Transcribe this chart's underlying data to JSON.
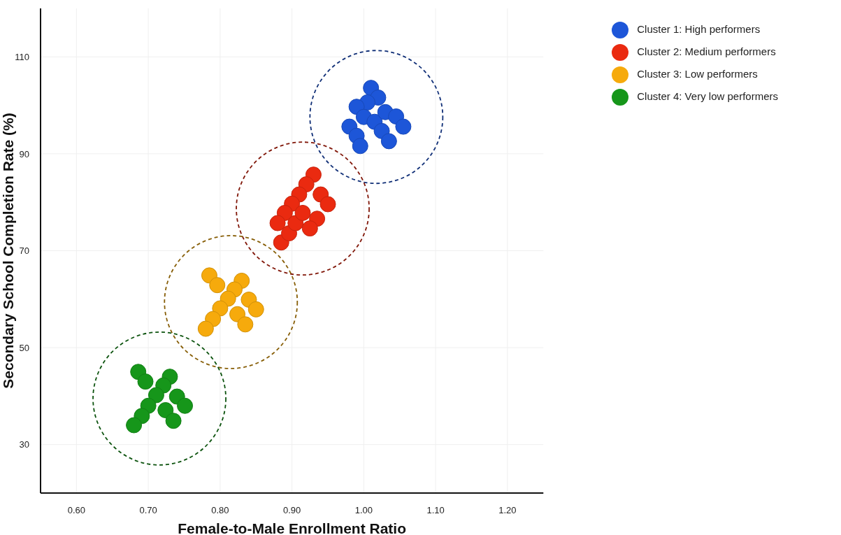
{
  "chart_data": {
    "type": "scatter",
    "xlabel": "Female-to-Male Enrollment Ratio",
    "ylabel": "Secondary School Completion Rate (%)",
    "xlim": [
      0.55,
      1.25
    ],
    "xticks": [
      {
        "value": 0.6,
        "label": "0.60"
      },
      {
        "value": 0.7,
        "label": "0.70"
      },
      {
        "value": 0.8,
        "label": "0.80"
      },
      {
        "value": 0.9,
        "label": "0.90"
      },
      {
        "value": 1.0,
        "label": "1.00"
      },
      {
        "value": 1.1,
        "label": "1.10"
      },
      {
        "value": 1.2,
        "label": "1.20"
      }
    ],
    "ylim": [
      20,
      120
    ],
    "yticks": [
      30,
      50,
      70,
      90,
      110
    ],
    "grid": true,
    "legend": "top right",
    "marker": "circle",
    "series": [
      {
        "name": "Cluster 1: High performers",
        "color": "#1d56d8",
        "x": [
          1.01,
          1.02,
          1.005,
          0.99,
          1.0,
          1.015,
          1.03,
          1.045,
          1.055,
          0.98,
          0.99,
          0.995,
          1.025,
          1.035
        ],
        "values": [
          103.6,
          101.6,
          100.6,
          99.7,
          97.6,
          96.6,
          98.6,
          97.7,
          95.6,
          95.6,
          93.7,
          91.6,
          94.7,
          92.6
        ]
      },
      {
        "name": "Cluster 2: Medium performers",
        "color": "#ea2a10",
        "x": [
          0.93,
          0.92,
          0.91,
          0.9,
          0.89,
          0.88,
          0.885,
          0.896,
          0.905,
          0.915,
          0.94,
          0.95,
          0.935,
          0.925
        ],
        "values": [
          85.7,
          83.7,
          81.6,
          79.7,
          77.8,
          75.7,
          71.7,
          73.6,
          75.7,
          77.8,
          81.6,
          79.6,
          76.6,
          74.6
        ]
      },
      {
        "name": "Cluster 3: Low performers",
        "color": "#f6aa0c",
        "x": [
          0.785,
          0.796,
          0.805,
          0.815,
          0.824,
          0.835,
          0.83,
          0.82,
          0.811,
          0.8,
          0.79,
          0.78,
          0.84,
          0.85
        ],
        "values": [
          64.9,
          62.9,
          null,
          null,
          56.9,
          54.8,
          63.8,
          62.0,
          60.1,
          58.1,
          55.9,
          53.9,
          59.9,
          57.9
        ]
      },
      {
        "name": "Cluster 4: Very low performers",
        "color": "#16961a",
        "x": [
          0.686,
          0.696,
          0.705,
          0.714,
          0.724,
          0.735,
          0.73,
          0.721,
          0.711,
          0.7,
          0.691,
          0.68,
          0.74,
          0.751
        ],
        "values": [
          45.0,
          43.0,
          null,
          null,
          37.1,
          34.9,
          44.0,
          42.2,
          40.2,
          38.0,
          35.9,
          34.0,
          39.9,
          38.0
        ]
      }
    ]
  }
}
